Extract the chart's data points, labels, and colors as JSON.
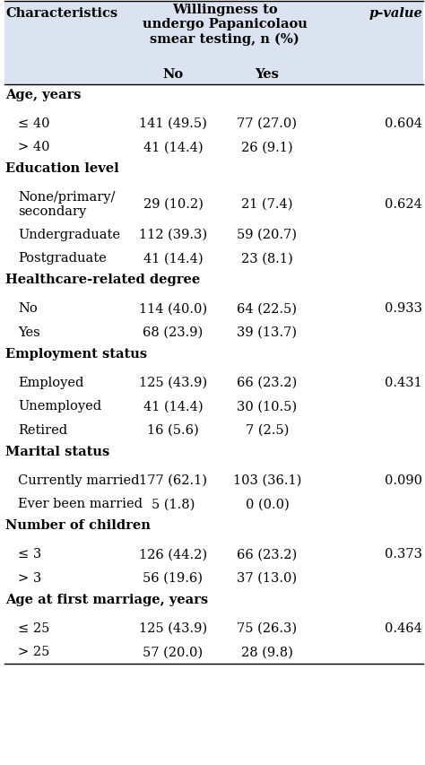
{
  "header_bg": "#dce3f0",
  "body_bg": "#ffffff",
  "col1_header": "Characteristics",
  "col2_header": "Willingness to\nundergo Papanicolaou\nsmear testing, n (%)",
  "col5_header": "p-value",
  "rows": [
    {
      "type": "section",
      "label": "Age, years",
      "no": "",
      "yes": "",
      "pval": ""
    },
    {
      "type": "data",
      "label": "≤ 40",
      "no": "141 (49.5)",
      "yes": "77 (27.0)",
      "pval": "0.604"
    },
    {
      "type": "data",
      "label": "> 40",
      "no": "41 (14.4)",
      "yes": "26 (9.1)",
      "pval": ""
    },
    {
      "type": "section",
      "label": "Education level",
      "no": "",
      "yes": "",
      "pval": ""
    },
    {
      "type": "data2",
      "label": "None/primary/\nsecondary",
      "no": "29 (10.2)",
      "yes": "21 (7.4)",
      "pval": "0.624"
    },
    {
      "type": "data",
      "label": "Undergraduate",
      "no": "112 (39.3)",
      "yes": "59 (20.7)",
      "pval": ""
    },
    {
      "type": "data",
      "label": "Postgraduate",
      "no": "41 (14.4)",
      "yes": "23 (8.1)",
      "pval": ""
    },
    {
      "type": "section",
      "label": "Healthcare-related degree",
      "no": "",
      "yes": "",
      "pval": ""
    },
    {
      "type": "data",
      "label": "No",
      "no": "114 (40.0)",
      "yes": "64 (22.5)",
      "pval": "0.933"
    },
    {
      "type": "data",
      "label": "Yes",
      "no": "68 (23.9)",
      "yes": "39 (13.7)",
      "pval": ""
    },
    {
      "type": "section",
      "label": "Employment status",
      "no": "",
      "yes": "",
      "pval": ""
    },
    {
      "type": "data",
      "label": "Employed",
      "no": "125 (43.9)",
      "yes": "66 (23.2)",
      "pval": "0.431"
    },
    {
      "type": "data",
      "label": "Unemployed",
      "no": "41 (14.4)",
      "yes": "30 (10.5)",
      "pval": ""
    },
    {
      "type": "data",
      "label": "Retired",
      "no": "16 (5.6)",
      "yes": "7 (2.5)",
      "pval": ""
    },
    {
      "type": "section",
      "label": "Marital status",
      "no": "",
      "yes": "",
      "pval": ""
    },
    {
      "type": "data",
      "label": "Currently married",
      "no": "177 (62.1)",
      "yes": "103 (36.1)",
      "pval": "0.090"
    },
    {
      "type": "data",
      "label": "Ever been married",
      "no": "5 (1.8)",
      "yes": "0 (0.0)",
      "pval": ""
    },
    {
      "type": "section",
      "label": "Number of children",
      "no": "",
      "yes": "",
      "pval": ""
    },
    {
      "type": "data",
      "label": "≤ 3",
      "no": "126 (44.2)",
      "yes": "66 (23.2)",
      "pval": "0.373"
    },
    {
      "type": "data",
      "label": "> 3",
      "no": "56 (19.6)",
      "yes": "37 (13.0)",
      "pval": ""
    },
    {
      "type": "section",
      "label": "Age at first marriage, years",
      "no": "",
      "yes": "",
      "pval": ""
    },
    {
      "type": "data",
      "label": "≤ 25",
      "no": "125 (43.9)",
      "yes": "75 (26.3)",
      "pval": "0.464"
    },
    {
      "type": "data",
      "label": "> 25",
      "no": "57 (20.0)",
      "yes": "28 (9.8)",
      "pval": ""
    }
  ],
  "font_family": "DejaVu Serif",
  "header_fontsize": 10.5,
  "section_fontsize": 10.5,
  "data_fontsize": 10.5,
  "fig_width": 4.74,
  "fig_height": 8.54,
  "dpi": 100
}
